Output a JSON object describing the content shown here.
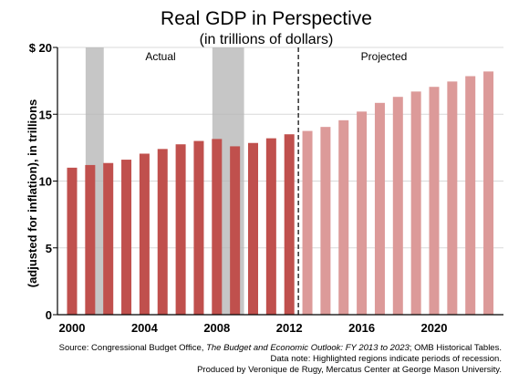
{
  "chart_data": {
    "type": "bar",
    "title": "Real GDP in Perspective",
    "subtitle": "(in trillions of dollars)",
    "ylabel": "(adjusted for inflation), in trillions",
    "ylim": [
      0,
      20
    ],
    "y_ticks": [
      "0",
      "5",
      "10",
      "15",
      "$ 20"
    ],
    "x_ticks": [
      "2000",
      "2004",
      "2008",
      "2012",
      "2016",
      "2020"
    ],
    "categories": [
      "2000",
      "2001",
      "2002",
      "2003",
      "2004",
      "2005",
      "2006",
      "2007",
      "2008",
      "2009",
      "2010",
      "2011",
      "2012",
      "2013",
      "2014",
      "2015",
      "2016",
      "2017",
      "2018",
      "2019",
      "2020",
      "2021",
      "2022",
      "2023"
    ],
    "series": [
      {
        "name": "Actual",
        "color": "#c0504d",
        "values": [
          11.0,
          11.2,
          11.35,
          11.6,
          12.05,
          12.4,
          12.75,
          13.0,
          13.15,
          12.6,
          12.85,
          13.2,
          13.5,
          null,
          null,
          null,
          null,
          null,
          null,
          null,
          null,
          null,
          null,
          null
        ]
      },
      {
        "name": "Projected",
        "color": "#dc9a99",
        "values": [
          null,
          null,
          null,
          null,
          null,
          null,
          null,
          null,
          null,
          null,
          null,
          null,
          null,
          13.75,
          14.05,
          14.55,
          15.2,
          15.85,
          16.3,
          16.7,
          17.05,
          17.45,
          17.85,
          18.2
        ]
      }
    ],
    "recessions": [
      {
        "start_year": 2000.75,
        "end_year": 2001.75
      },
      {
        "start_year": 2007.75,
        "end_year": 2009.5
      }
    ],
    "divider_year": 2012.5,
    "annotations": {
      "actual": "Actual",
      "projected": "Projected"
    },
    "grid": true,
    "recession_color": "#b3b3b3"
  },
  "footer": {
    "source_prefix": "Source: Congressional Budget Office, ",
    "source_italic": "The Budget and Economic Outlook: FY 2013 to 2023",
    "source_suffix": "; OMB Historical Tables.",
    "data_note": "Data note: Highlighted regions indicate periods of recession.",
    "produced_by": "Produced by Veronique de Rugy, Mercatus Center at George Mason University."
  }
}
